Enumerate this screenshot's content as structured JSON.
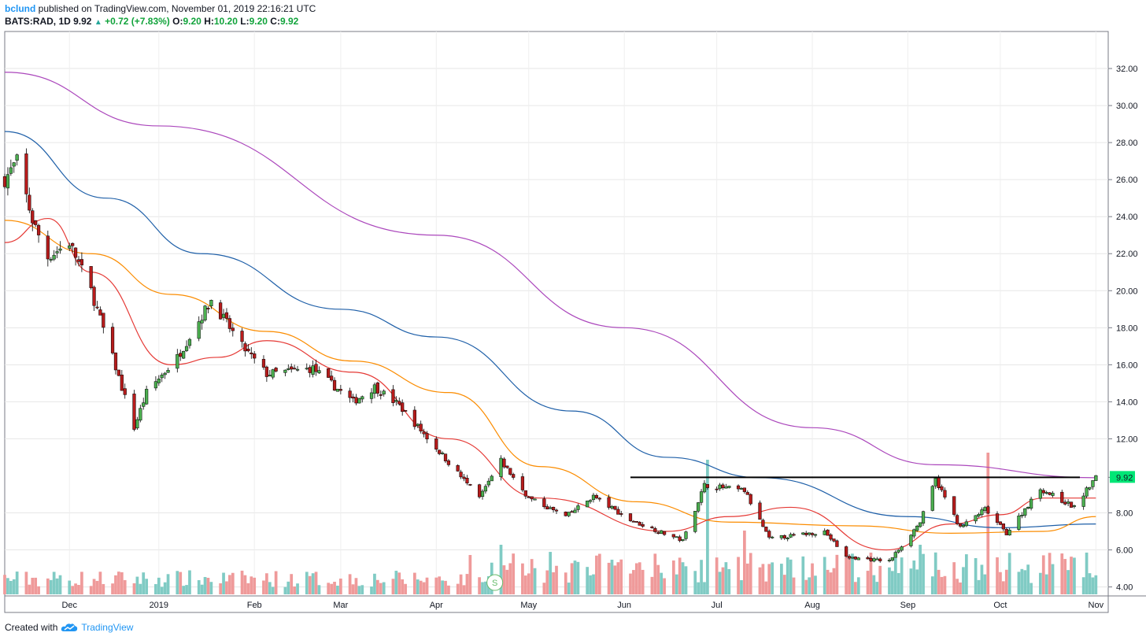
{
  "header": {
    "user": "bclund",
    "published": "published on TradingView.com, November 01, 2019 22:16:21 UTC",
    "symbol": "BATS:RAD, 1D",
    "last": "9.92",
    "change": "+0.72 (+7.83%)",
    "o_label": "O:",
    "o": "9.20",
    "h_label": "H:",
    "h": "10.20",
    "l_label": "L:",
    "l": "9.20",
    "c_label": "C:",
    "c": "9.92"
  },
  "footer": {
    "created": "Created with",
    "brand": "TradingView"
  },
  "colors": {
    "up": "#26a69a",
    "up_body": "#4caf50",
    "down": "#b71c1c",
    "ma_short": "#e53935",
    "ma_mid": "#fb8c00",
    "ma_long": "#1e5fa8",
    "ma_200": "#ab47bc",
    "vol_up": "#80cbc4",
    "vol_down": "#ef9a9a",
    "resistance": "#000000",
    "price_tag": "#00e676"
  },
  "chart_data": {
    "type": "candlestick",
    "y_ticks": [
      "32.00",
      "30.00",
      "28.00",
      "26.00",
      "24.00",
      "22.00",
      "20.00",
      "18.00",
      "16.00",
      "14.00",
      "12.00",
      "9.92",
      "8.00",
      "6.00",
      "4.00"
    ],
    "ylim": [
      3.6,
      34.0
    ],
    "x_labels": [
      "Dec",
      "2019",
      "Feb",
      "Mar",
      "Apr",
      "May",
      "Jun",
      "Jul",
      "Aug",
      "Sep",
      "Oct",
      "Nov"
    ],
    "x_range": [
      "2018-11-12",
      "2019-11-05"
    ],
    "last_price_label": "9.92",
    "resistance_level": 9.92,
    "resistance_start": "2019-06-03",
    "event_marker": "S",
    "key_points": [
      {
        "date": "2018-11-12",
        "price": 26.0
      },
      {
        "date": "2018-11-16",
        "price": 27.0
      },
      {
        "date": "2018-11-21",
        "price": 23.8
      },
      {
        "date": "2018-11-26",
        "price": 21.8
      },
      {
        "date": "2018-12-03",
        "price": 22.6
      },
      {
        "date": "2018-12-10",
        "price": 20.0
      },
      {
        "date": "2018-12-17",
        "price": 16.4
      },
      {
        "date": "2018-12-24",
        "price": 12.6
      },
      {
        "date": "2018-12-28",
        "price": 14.5
      },
      {
        "date": "2019-01-07",
        "price": 16.4
      },
      {
        "date": "2019-01-18",
        "price": 19.5
      },
      {
        "date": "2019-01-28",
        "price": 17.0
      },
      {
        "date": "2019-02-05",
        "price": 15.5
      },
      {
        "date": "2019-02-20",
        "price": 15.8
      },
      {
        "date": "2019-03-05",
        "price": 14.0
      },
      {
        "date": "2019-03-12",
        "price": 14.8
      },
      {
        "date": "2019-03-20",
        "price": 13.8
      },
      {
        "date": "2019-04-01",
        "price": 11.5
      },
      {
        "date": "2019-04-15",
        "price": 8.8
      },
      {
        "date": "2019-04-22",
        "price": 10.8
      },
      {
        "date": "2019-05-01",
        "price": 8.8
      },
      {
        "date": "2019-05-13",
        "price": 7.8
      },
      {
        "date": "2019-05-22",
        "price": 8.9
      },
      {
        "date": "2019-06-03",
        "price": 7.6
      },
      {
        "date": "2019-06-20",
        "price": 6.5
      },
      {
        "date": "2019-06-27",
        "price": 9.5
      },
      {
        "date": "2019-07-10",
        "price": 9.2
      },
      {
        "date": "2019-07-18",
        "price": 6.6
      },
      {
        "date": "2019-08-05",
        "price": 7.0
      },
      {
        "date": "2019-08-12",
        "price": 5.6
      },
      {
        "date": "2019-08-26",
        "price": 5.4
      },
      {
        "date": "2019-09-05",
        "price": 7.5
      },
      {
        "date": "2019-09-10",
        "price": 9.8
      },
      {
        "date": "2019-09-18",
        "price": 7.2
      },
      {
        "date": "2019-09-26",
        "price": 8.2
      },
      {
        "date": "2019-10-03",
        "price": 6.9
      },
      {
        "date": "2019-10-14",
        "price": 9.3
      },
      {
        "date": "2019-10-25",
        "price": 8.3
      },
      {
        "date": "2019-11-01",
        "price": 9.92
      }
    ],
    "moving_averages": [
      {
        "key": "ma_200",
        "points": [
          [
            "2018-11-12",
            31.8
          ],
          [
            "2019-01-01",
            28.9
          ],
          [
            "2019-04-01",
            23.0
          ],
          [
            "2019-06-01",
            18.0
          ],
          [
            "2019-08-01",
            12.6
          ],
          [
            "2019-09-10",
            10.6
          ],
          [
            "2019-11-01",
            9.9
          ]
        ]
      },
      {
        "key": "ma_long",
        "points": [
          [
            "2018-11-12",
            28.6
          ],
          [
            "2018-12-15",
            25.0
          ],
          [
            "2019-01-15",
            22.0
          ],
          [
            "2019-03-01",
            19.0
          ],
          [
            "2019-04-01",
            17.5
          ],
          [
            "2019-05-15",
            13.5
          ],
          [
            "2019-06-15",
            11.0
          ],
          [
            "2019-07-15",
            9.9
          ],
          [
            "2019-09-01",
            7.8
          ],
          [
            "2019-10-01",
            7.2
          ],
          [
            "2019-11-01",
            7.4
          ]
        ]
      },
      {
        "key": "ma_mid",
        "points": [
          [
            "2018-11-12",
            23.8
          ],
          [
            "2018-12-10",
            22.0
          ],
          [
            "2019-01-05",
            19.8
          ],
          [
            "2019-02-05",
            17.8
          ],
          [
            "2019-03-05",
            16.2
          ],
          [
            "2019-04-05",
            14.5
          ],
          [
            "2019-05-05",
            10.5
          ],
          [
            "2019-06-05",
            8.6
          ],
          [
            "2019-07-05",
            7.5
          ],
          [
            "2019-08-15",
            7.3
          ],
          [
            "2019-09-15",
            6.9
          ],
          [
            "2019-10-15",
            7.0
          ],
          [
            "2019-11-01",
            7.8
          ]
        ]
      },
      {
        "key": "ma_short",
        "points": [
          [
            "2018-11-12",
            22.6
          ],
          [
            "2018-11-26",
            23.9
          ],
          [
            "2018-12-10",
            21.0
          ],
          [
            "2019-01-05",
            16.0
          ],
          [
            "2019-01-20",
            16.4
          ],
          [
            "2019-02-05",
            17.3
          ],
          [
            "2019-03-05",
            15.6
          ],
          [
            "2019-04-05",
            12.0
          ],
          [
            "2019-05-05",
            8.8
          ],
          [
            "2019-06-15",
            7.0
          ],
          [
            "2019-07-05",
            7.8
          ],
          [
            "2019-07-25",
            8.3
          ],
          [
            "2019-08-25",
            6.0
          ],
          [
            "2019-09-15",
            7.4
          ],
          [
            "2019-10-01",
            7.9
          ],
          [
            "2019-10-15",
            8.8
          ],
          [
            "2019-11-01",
            8.8
          ]
        ]
      }
    ],
    "volume_spikes": [
      {
        "date": "2019-06-28",
        "level": 0.95,
        "dir": "up"
      },
      {
        "date": "2019-09-27",
        "level": 1.0,
        "dir": "down"
      },
      {
        "date": "2019-04-22",
        "level": 0.35,
        "dir": "up"
      },
      {
        "date": "2019-07-10",
        "level": 0.45,
        "dir": "down"
      },
      {
        "date": "2019-09-05",
        "level": 0.35,
        "dir": "up"
      }
    ]
  }
}
